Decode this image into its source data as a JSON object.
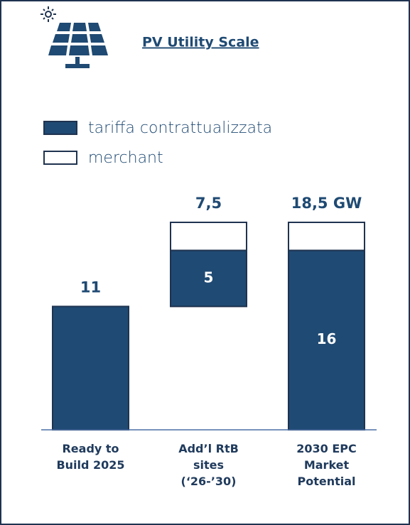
{
  "chart_data": {
    "type": "waterfall",
    "title": "PV Utility Scale",
    "categories": [
      "Ready to Build 2025",
      "Add’l RtB sites (‘26-’30)",
      "2030 EPC Market Potential"
    ],
    "series": [
      {
        "name": "tariffa contrattualizzata",
        "color": "#1f4a73",
        "values": [
          11,
          5,
          16
        ],
        "value_labels": [
          null,
          "5",
          "16"
        ]
      },
      {
        "name": "merchant",
        "color": "#ffffff",
        "values": [
          null,
          2.5,
          2.5
        ]
      }
    ],
    "totals": [
      11,
      7.5,
      18.5
    ],
    "total_labels": [
      "11",
      "7,5",
      "18,5 GW"
    ]
  }
}
